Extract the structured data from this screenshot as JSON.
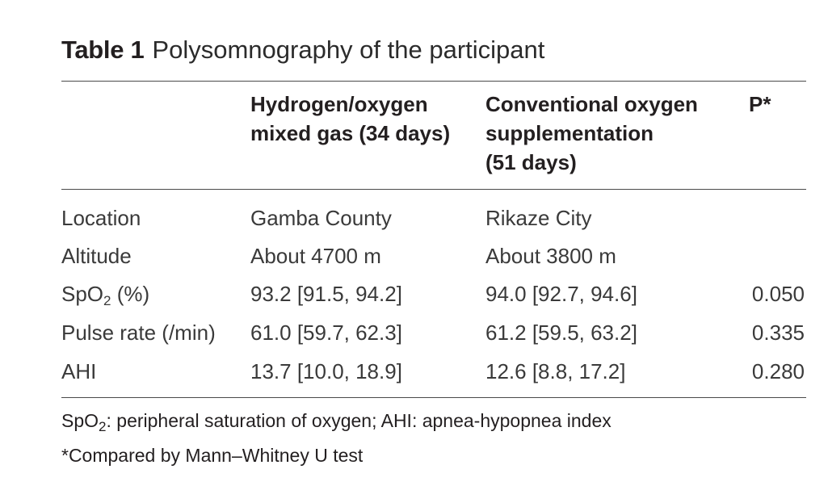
{
  "caption": {
    "label": "Table 1",
    "title": "Polysomnography of the participant"
  },
  "columns": {
    "h2": [
      "Hydrogen/oxygen",
      "mixed gas (34 days)"
    ],
    "h3": [
      "Conventional oxygen",
      "supplementation",
      "(51 days)"
    ],
    "h4": "P*"
  },
  "rows": [
    {
      "label": "Location",
      "c2": "Gamba County",
      "c3": "Rikaze City",
      "p": ""
    },
    {
      "label": "Altitude",
      "c2": "About 4700 m",
      "c3": "About 3800 m",
      "p": ""
    },
    {
      "label_main": "SpO",
      "label_sub": "2",
      "label_rest": " (%)",
      "c2": "93.2 [91.5, 94.2]",
      "c3": "94.0 [92.7, 94.6]",
      "p": "0.050"
    },
    {
      "label": "Pulse rate (/min)",
      "c2": "61.0 [59.7, 62.3]",
      "c3": "61.2 [59.5, 63.2]",
      "p": "0.335"
    },
    {
      "label": "AHI",
      "c2": "13.7 [10.0, 18.9]",
      "c3": "12.6 [8.8, 17.2]",
      "p": "0.280"
    }
  ],
  "footnotes": {
    "f1_main": "SpO",
    "f1_sub": "2",
    "f1_rest": ": peripheral saturation of oxygen; AHI: apnea-hypopnea index",
    "f2": "*Compared by Mann–Whitney U test"
  }
}
